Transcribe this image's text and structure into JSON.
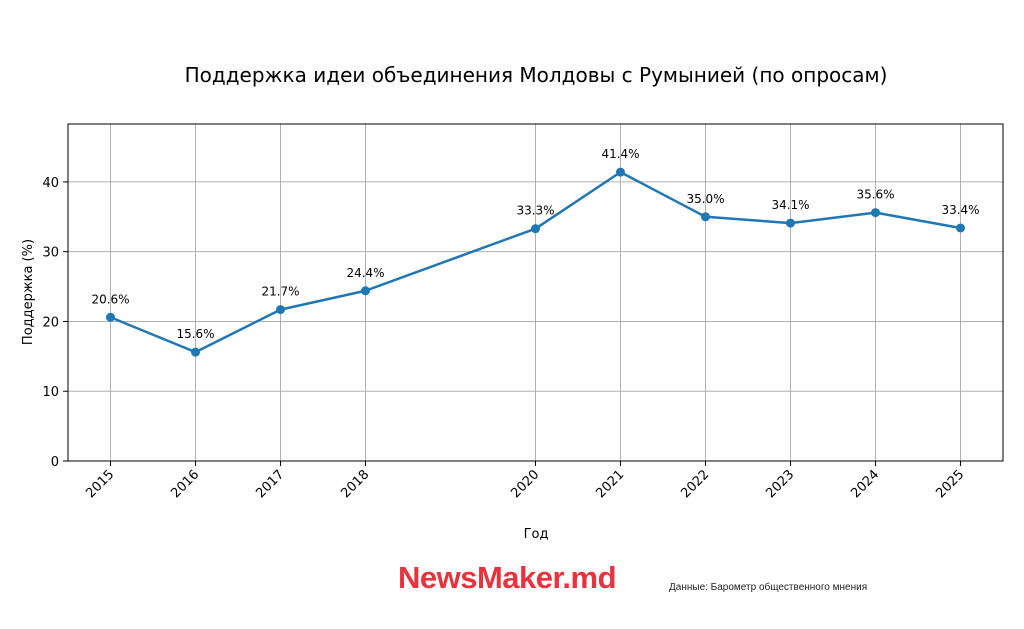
{
  "chart_data": {
    "type": "line",
    "title": "Поддержка идеи объединения Молдовы с Румынией (по опросам)",
    "xlabel": "Год",
    "ylabel": "Поддержка (%)",
    "x": [
      2015,
      2016,
      2017,
      2018,
      2020,
      2021,
      2022,
      2023,
      2024,
      2025
    ],
    "x_tick_labels": [
      "2015",
      "2016",
      "2017",
      "2018",
      "2020",
      "2021",
      "2022",
      "2023",
      "2024",
      "2025"
    ],
    "series": [
      {
        "values": [
          20.6,
          15.6,
          21.7,
          24.4,
          33.3,
          41.4,
          35.0,
          34.1,
          35.6,
          33.4
        ]
      }
    ],
    "data_labels": [
      "20.6%",
      "15.6%",
      "21.7%",
      "24.4%",
      "33.3%",
      "41.4%",
      "35.0%",
      "34.1%",
      "35.6%",
      "33.4%"
    ],
    "y_ticks": [
      0,
      10,
      20,
      30,
      40
    ],
    "y_tick_labels": [
      "0",
      "10",
      "20",
      "30",
      "40"
    ],
    "xlim": [
      2014.5,
      2025.5
    ],
    "ylim": [
      0,
      48.3
    ],
    "grid": true,
    "series_color": "#1f77b4"
  },
  "footer": {
    "brand_main": "NewsMaker",
    "brand_suffix": ".md",
    "brand_color": "#e8323c",
    "source": "Данные: Барометр общественного мнения"
  }
}
